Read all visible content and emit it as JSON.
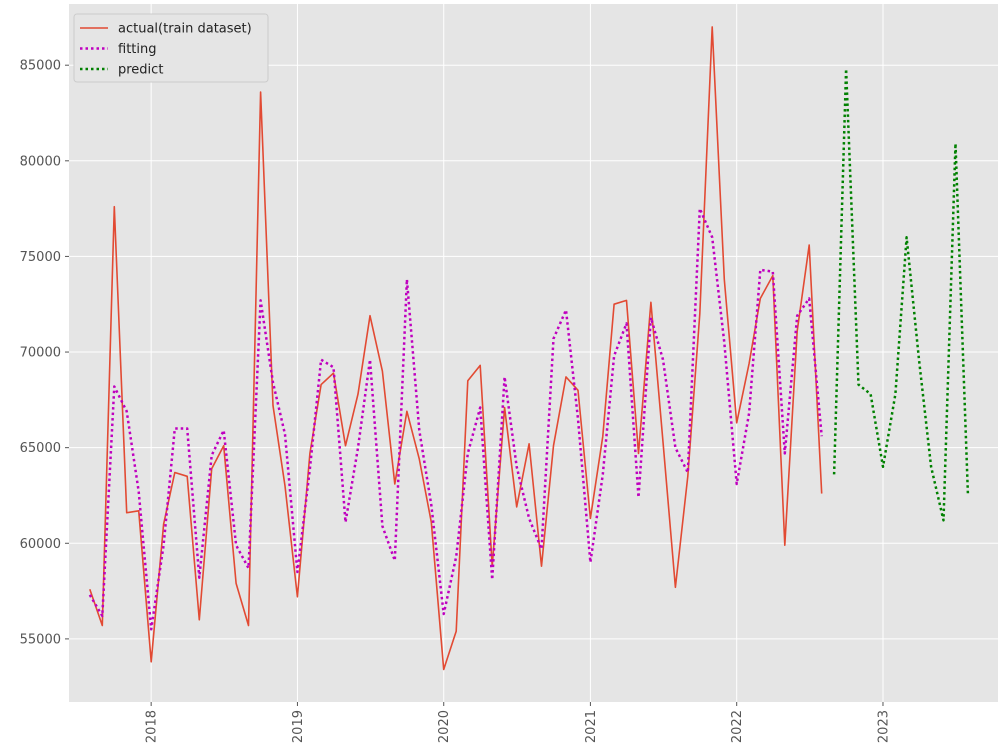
{
  "chart_data": {
    "type": "line",
    "title": "",
    "xlabel": "",
    "ylabel": "",
    "xlim": [
      "2017-06-10",
      "2023-10-15"
    ],
    "ylim": [
      51700,
      88200
    ],
    "grid": true,
    "x_ticks": [
      "2018",
      "2019",
      "2020",
      "2021",
      "2022",
      "2023"
    ],
    "y_ticks": [
      55000,
      60000,
      65000,
      70000,
      75000,
      80000,
      85000
    ],
    "legend": {
      "placement": "top-left"
    },
    "series": [
      {
        "name": "actual(train dataset)",
        "color": "#e24a33",
        "style": "solid",
        "x": [
          "2017-08-01",
          "2017-09-01",
          "2017-10-01",
          "2017-11-01",
          "2017-12-01",
          "2018-01-01",
          "2018-02-01",
          "2018-03-01",
          "2018-04-01",
          "2018-05-01",
          "2018-06-01",
          "2018-07-01",
          "2018-08-01",
          "2018-09-01",
          "2018-10-01",
          "2018-11-01",
          "2018-12-01",
          "2019-01-01",
          "2019-02-01",
          "2019-03-01",
          "2019-04-01",
          "2019-05-01",
          "2019-06-01",
          "2019-07-01",
          "2019-08-01",
          "2019-09-01",
          "2019-10-01",
          "2019-11-01",
          "2019-12-01",
          "2020-01-01",
          "2020-02-01",
          "2020-03-01",
          "2020-04-01",
          "2020-05-01",
          "2020-06-01",
          "2020-07-01",
          "2020-08-01",
          "2020-09-01",
          "2020-10-01",
          "2020-11-01",
          "2020-12-01",
          "2021-01-01",
          "2021-02-01",
          "2021-03-01",
          "2021-04-01",
          "2021-05-01",
          "2021-06-01",
          "2021-07-01",
          "2021-08-01",
          "2021-09-01",
          "2021-10-01",
          "2021-11-01",
          "2021-12-01",
          "2022-01-01",
          "2022-02-01",
          "2022-03-01",
          "2022-04-01",
          "2022-05-01",
          "2022-06-01",
          "2022-07-01",
          "2022-08-01"
        ],
        "y": [
          57600,
          55700,
          77600,
          61600,
          61700,
          53800,
          61000,
          63700,
          63500,
          56000,
          63900,
          65100,
          57900,
          55700,
          83600,
          67200,
          63000,
          57200,
          64700,
          68300,
          68900,
          65100,
          67800,
          71900,
          69000,
          63100,
          66900,
          64400,
          61100,
          53400,
          55400,
          68500,
          69300,
          58800,
          67100,
          61900,
          65200,
          58800,
          65100,
          68700,
          68000,
          61300,
          65600,
          72500,
          72700,
          64700,
          72600,
          65300,
          57700,
          63500,
          72000,
          87000,
          73800,
          66300,
          69400,
          72800,
          74000,
          59900,
          71100,
          75600,
          62600
        ]
      },
      {
        "name": "fitting",
        "color": "#bf00bf",
        "style": "dotted",
        "x": [
          "2017-08-01",
          "2017-09-01",
          "2017-10-01",
          "2017-11-01",
          "2017-12-01",
          "2018-01-01",
          "2018-02-01",
          "2018-03-01",
          "2018-04-01",
          "2018-05-01",
          "2018-06-01",
          "2018-07-01",
          "2018-08-01",
          "2018-09-01",
          "2018-10-01",
          "2018-11-01",
          "2018-12-01",
          "2019-01-01",
          "2019-02-01",
          "2019-03-01",
          "2019-04-01",
          "2019-05-01",
          "2019-06-01",
          "2019-07-01",
          "2019-08-01",
          "2019-09-01",
          "2019-10-01",
          "2019-11-01",
          "2019-12-01",
          "2020-01-01",
          "2020-02-01",
          "2020-03-01",
          "2020-04-01",
          "2020-05-01",
          "2020-06-01",
          "2020-07-01",
          "2020-08-01",
          "2020-09-01",
          "2020-10-01",
          "2020-11-01",
          "2020-12-01",
          "2021-01-01",
          "2021-02-01",
          "2021-03-01",
          "2021-04-01",
          "2021-05-01",
          "2021-06-01",
          "2021-07-01",
          "2021-08-01",
          "2021-09-01",
          "2021-10-01",
          "2021-11-01",
          "2021-12-01",
          "2022-01-01",
          "2022-02-01",
          "2022-03-01",
          "2022-04-01",
          "2022-05-01",
          "2022-06-01",
          "2022-07-01",
          "2022-08-01"
        ],
        "y": [
          57300,
          56200,
          68200,
          66900,
          62700,
          55500,
          59900,
          66000,
          66000,
          58200,
          64600,
          65900,
          59900,
          58700,
          72700,
          68400,
          65700,
          58500,
          63900,
          69600,
          69200,
          61100,
          65000,
          69600,
          60900,
          59100,
          73800,
          65900,
          62000,
          56300,
          59300,
          64700,
          67100,
          58100,
          68700,
          64000,
          61300,
          59700,
          70700,
          72200,
          66500,
          59000,
          63600,
          69800,
          71500,
          62400,
          71800,
          69600,
          65000,
          63700,
          77500,
          76000,
          70500,
          63100,
          66800,
          74300,
          74200,
          64700,
          71900,
          72800,
          65600
        ]
      },
      {
        "name": "predict",
        "color": "#008000",
        "style": "dotted",
        "x": [
          "2022-09-01",
          "2022-10-01",
          "2022-11-01",
          "2022-12-01",
          "2023-01-01",
          "2023-02-01",
          "2023-03-01",
          "2023-04-01",
          "2023-05-01",
          "2023-06-01",
          "2023-07-01",
          "2023-08-01"
        ],
        "y": [
          63600,
          84800,
          68300,
          67800,
          64000,
          67800,
          76000,
          69600,
          64000,
          61200,
          80900,
          62600
        ]
      }
    ]
  }
}
